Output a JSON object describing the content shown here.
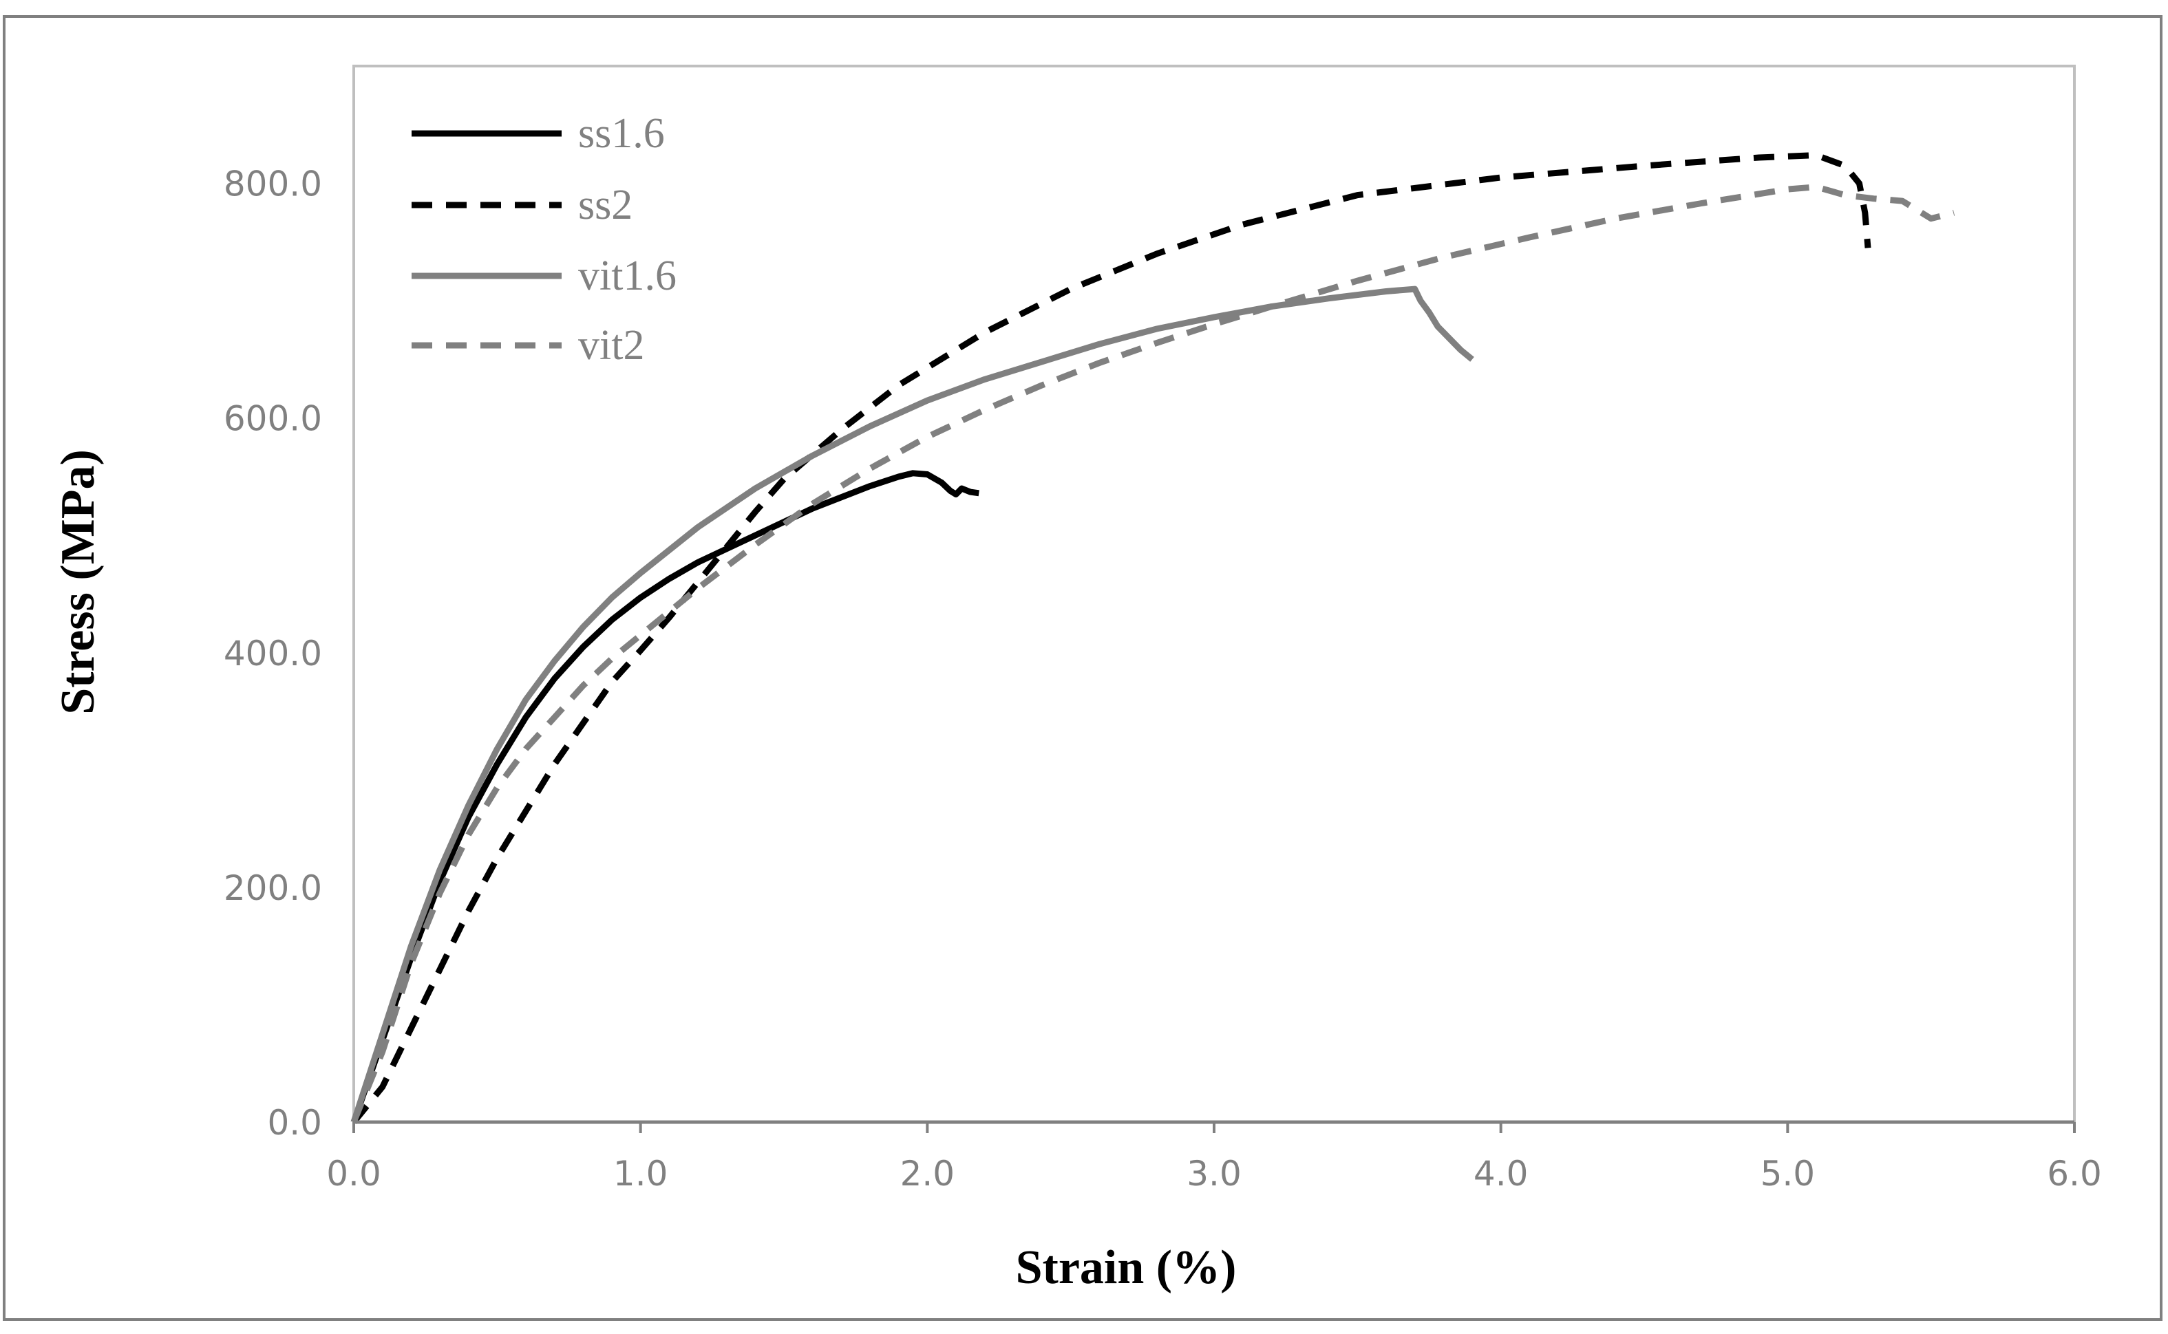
{
  "chart_data": {
    "type": "line",
    "title": "",
    "xlabel": "Strain (%)",
    "ylabel": "Stress (MPa)",
    "xlim": [
      0,
      6
    ],
    "ylim": [
      0,
      900
    ],
    "x_ticks": [
      "0.0",
      "1.0",
      "2.0",
      "3.0",
      "4.0",
      "5.0",
      "6.0"
    ],
    "y_ticks": [
      "0.0",
      "200.0",
      "400.0",
      "600.0",
      "800.0"
    ],
    "grid": false,
    "legend_position": "top-left",
    "colors": {
      "black": "#000000",
      "gray": "#808080",
      "axis": "#808080",
      "frame": "#808080"
    },
    "series": [
      {
        "name": "ss1.6",
        "color": "#000000",
        "dash": false,
        "x": [
          0,
          0.1,
          0.2,
          0.3,
          0.4,
          0.5,
          0.6,
          0.7,
          0.8,
          0.9,
          1.0,
          1.1,
          1.2,
          1.4,
          1.6,
          1.8,
          1.9,
          1.95,
          2.0,
          2.05,
          2.08,
          2.1,
          2.12,
          2.15,
          2.18
        ],
        "y": [
          0,
          70,
          140,
          205,
          260,
          305,
          345,
          378,
          405,
          428,
          447,
          463,
          477,
          500,
          523,
          542,
          550,
          553,
          552,
          545,
          538,
          535,
          540,
          537,
          536
        ]
      },
      {
        "name": "ss2",
        "color": "#000000",
        "dash": true,
        "x": [
          0,
          0.1,
          0.2,
          0.3,
          0.4,
          0.5,
          0.6,
          0.7,
          0.8,
          0.9,
          1.0,
          1.1,
          1.2,
          1.3,
          1.4,
          1.5,
          1.7,
          1.9,
          2.2,
          2.5,
          2.8,
          3.1,
          3.5,
          4.0,
          4.5,
          4.9,
          5.1,
          5.2,
          5.25,
          5.27,
          5.28
        ],
        "y": [
          0,
          30,
          80,
          130,
          180,
          225,
          265,
          305,
          340,
          375,
          402,
          430,
          460,
          490,
          520,
          548,
          590,
          628,
          673,
          710,
          740,
          765,
          790,
          805,
          815,
          822,
          824,
          815,
          800,
          775,
          745
        ]
      },
      {
        "name": "vit1.6",
        "color": "#808080",
        "dash": false,
        "x": [
          0,
          0.1,
          0.2,
          0.3,
          0.4,
          0.5,
          0.6,
          0.7,
          0.8,
          0.9,
          1.0,
          1.2,
          1.4,
          1.6,
          1.8,
          2.0,
          2.2,
          2.4,
          2.6,
          2.8,
          3.0,
          3.2,
          3.4,
          3.6,
          3.7,
          3.72,
          3.75,
          3.78,
          3.82,
          3.86,
          3.9
        ],
        "y": [
          0,
          75,
          150,
          215,
          270,
          318,
          360,
          393,
          422,
          447,
          468,
          507,
          540,
          568,
          593,
          615,
          633,
          648,
          663,
          676,
          686,
          695,
          702,
          708,
          710,
          700,
          690,
          678,
          668,
          658,
          650
        ]
      },
      {
        "name": "vit2",
        "color": "#808080",
        "dash": true,
        "x": [
          0,
          0.1,
          0.2,
          0.3,
          0.4,
          0.5,
          0.6,
          0.7,
          0.8,
          0.9,
          1.0,
          1.2,
          1.4,
          1.6,
          1.8,
          2.0,
          2.2,
          2.4,
          2.6,
          2.8,
          3.0,
          3.2,
          3.5,
          3.8,
          4.1,
          4.4,
          4.7,
          5.0,
          5.1,
          5.2,
          5.3,
          5.4,
          5.5,
          5.58
        ],
        "y": [
          0,
          60,
          135,
          195,
          245,
          285,
          318,
          345,
          372,
          395,
          415,
          455,
          492,
          527,
          557,
          584,
          607,
          628,
          647,
          664,
          680,
          695,
          717,
          737,
          754,
          770,
          783,
          795,
          797,
          790,
          787,
          785,
          770,
          775
        ]
      }
    ]
  }
}
